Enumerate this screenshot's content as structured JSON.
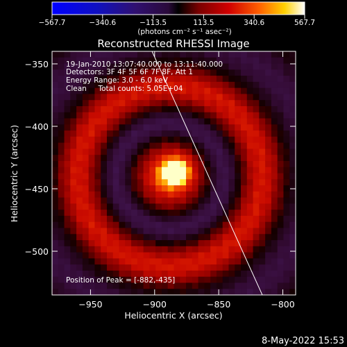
{
  "chart_data": {
    "type": "heatmap",
    "title": "Reconstructed RHESSI Image",
    "xlabel": "Heliocentric X (arcsec)",
    "ylabel": "Heliocentric Y (arcsec)",
    "x_range": [
      -980,
      -790
    ],
    "y_range": [
      -535,
      -340
    ],
    "x_ticks": [
      -950,
      -900,
      -850,
      -800
    ],
    "y_ticks": [
      -350,
      -400,
      -450,
      -500
    ],
    "x_tick_labels": [
      "−950",
      "−900",
      "−850",
      "−800"
    ],
    "y_tick_labels": [
      "−350",
      "−400",
      "−450",
      "−500"
    ],
    "colorbar": {
      "min": -567.7,
      "max": 567.7,
      "tick_values": [
        -567.7,
        -340.6,
        -113.5,
        113.5,
        340.6,
        567.7
      ],
      "tick_labels": [
        "−567.7",
        "−340.6",
        "−113.5",
        "113.5",
        "340.6",
        "567.7"
      ],
      "unit_label": "(photons cm⁻² s⁻¹ asec⁻²)"
    },
    "annotations": [
      "19-Jan-2010 13:07:40.000 to 13:11:40.000",
      "Detectors: 3F 4F 5F 6F 7F 8F, Att 1",
      "Energy Range: 3.0 - 6.0 keV",
      "Clean     Total counts: 5.05E+04"
    ],
    "peak_label": "Position of Peak = [-882,-435]",
    "peak_position": [
      -882,
      -435
    ],
    "limb_line": [
      [
        -902,
        -340
      ],
      [
        -816,
        -535
      ]
    ],
    "grid": false
  },
  "footer": {
    "timestamp": "8-May-2022 15:53"
  },
  "colors": {
    "background": "#000000",
    "limb": "#ffffff"
  }
}
